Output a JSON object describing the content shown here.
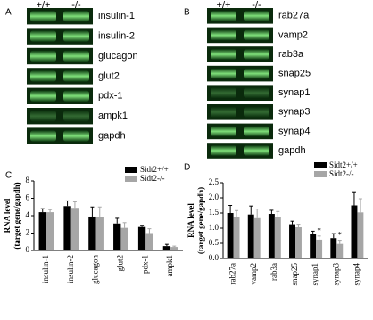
{
  "panels": [
    "A",
    "B",
    "C",
    "D"
  ],
  "gels": [
    {
      "columns": [
        "+/+",
        "-/-"
      ],
      "rows": [
        "insulin-1",
        "insulin-2",
        "glucagon",
        "glut2",
        "pdx-1",
        "ampk1",
        "gapdh"
      ]
    },
    {
      "columns": [
        "+/+",
        "-/-"
      ],
      "rows": [
        "rab27a",
        "vamp2",
        "rab3a",
        "snap25",
        "synap1",
        "synap3",
        "synap4",
        "gapdh"
      ]
    }
  ],
  "chart_data": [
    {
      "type": "bar",
      "y_label": "RNA level\n(target gene/gapdh)",
      "categories": [
        "insulin-1",
        "insulin-2",
        "glucagon",
        "glut2",
        "pdx-1",
        "ampk1"
      ],
      "series": [
        {
          "name": "Sidt2+/+",
          "color": "#000000",
          "values": [
            4.4,
            5.1,
            3.9,
            3.1,
            2.7,
            0.5
          ],
          "errors": [
            0.4,
            0.6,
            1.1,
            0.6,
            0.2,
            0.2
          ]
        },
        {
          "name": "Sidt2-/-",
          "color": "#a6a6a6",
          "values": [
            4.4,
            4.9,
            3.8,
            2.6,
            2.0,
            0.4
          ],
          "errors": [
            0.3,
            0.7,
            1.2,
            0.6,
            0.5,
            0.1
          ]
        }
      ],
      "ylim": [
        0,
        8
      ],
      "yticks": [
        0,
        2,
        4,
        6,
        8
      ]
    },
    {
      "type": "bar",
      "y_label": "RNA level\n(target gene/gapdh)",
      "categories": [
        "rab27a",
        "vamp2",
        "rab3a",
        "snap25",
        "synap1",
        "synap3",
        "synap4"
      ],
      "series": [
        {
          "name": "Sidt2+/+",
          "color": "#000000",
          "values": [
            1.5,
            1.45,
            1.47,
            1.13,
            0.8,
            0.67,
            1.75
          ],
          "errors": [
            0.25,
            0.28,
            0.12,
            0.1,
            0.1,
            0.15,
            0.45
          ]
        },
        {
          "name": "Sidt2-/-",
          "color": "#a6a6a6",
          "values": [
            1.38,
            1.33,
            1.37,
            1.03,
            0.62,
            0.48,
            1.52
          ],
          "errors": [
            0.2,
            0.3,
            0.18,
            0.1,
            0.12,
            0.12,
            0.45
          ],
          "significance": [
            null,
            null,
            null,
            null,
            "*",
            "*",
            null
          ]
        }
      ],
      "ylim": [
        0,
        2.5
      ],
      "yticks": [
        {
          "value": 0,
          "label": "0.0"
        },
        0.5,
        {
          "value": 1,
          "label": "1.0"
        },
        1.5,
        {
          "value": 2,
          "label": "2.0"
        },
        2.5
      ]
    }
  ]
}
